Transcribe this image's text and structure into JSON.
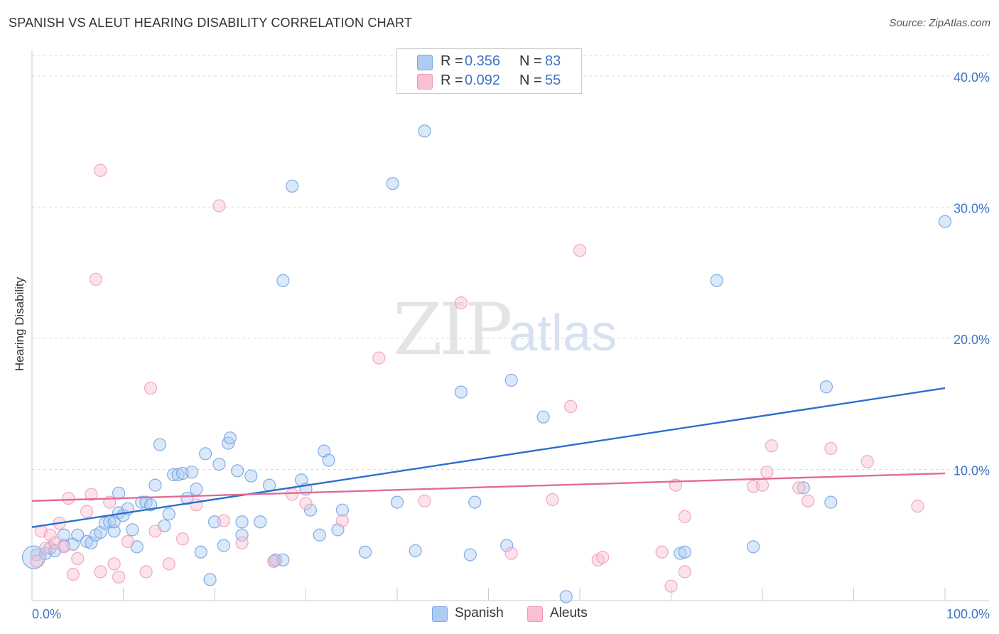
{
  "title": "SPANISH VS ALEUT HEARING DISABILITY CORRELATION CHART",
  "source": "Source: ZipAtlas.com",
  "watermark": {
    "zip": "ZIP",
    "atlas": "atlas"
  },
  "legend": {
    "rows": [
      {
        "r_label": "R =",
        "r_value": "0.356",
        "n_label": "N =",
        "n_value": "83",
        "color": "#aecbf2"
      },
      {
        "r_label": "R =",
        "r_value": "0.092",
        "n_label": "N =",
        "n_value": "55",
        "color": "#f8c0d2"
      }
    ]
  },
  "bottom_legend": {
    "spanish": "Spanish",
    "aleuts": "Aleuts"
  },
  "chart_data": {
    "type": "scatter",
    "title": "SPANISH VS ALEUT HEARING DISABILITY CORRELATION CHART",
    "xlabel": "",
    "ylabel": "Hearing Disability",
    "xlim": [
      0,
      100
    ],
    "ylim": [
      0,
      42
    ],
    "x_ticks": [
      "0.0%",
      "100.0%"
    ],
    "y_ticks": [
      {
        "value": 10,
        "label": "10.0%"
      },
      {
        "value": 20,
        "label": "20.0%"
      },
      {
        "value": 30,
        "label": "30.0%"
      },
      {
        "value": 40,
        "label": "40.0%"
      }
    ],
    "grid": true,
    "legend_position": "top-center",
    "series": [
      {
        "name": "Spanish",
        "color": "#6fa0e0",
        "fill": "#aecbf2",
        "line_color": "#2c6fcf",
        "trend": {
          "x": [
            0,
            100
          ],
          "y": [
            5.6,
            16.2
          ]
        },
        "points": [
          [
            0.5,
            3.5
          ],
          [
            1.5,
            3.6
          ],
          [
            2,
            4
          ],
          [
            2.5,
            3.8
          ],
          [
            3.5,
            4.2
          ],
          [
            3.5,
            5
          ],
          [
            4.5,
            4.3
          ],
          [
            5,
            5
          ],
          [
            6,
            4.5
          ],
          [
            6.5,
            4.4
          ],
          [
            7,
            5
          ],
          [
            7.5,
            5.2
          ],
          [
            8,
            5.9
          ],
          [
            8.5,
            6
          ],
          [
            9,
            5.3
          ],
          [
            9,
            6
          ],
          [
            9.5,
            6.7
          ],
          [
            9.5,
            8.2
          ],
          [
            10,
            6.5
          ],
          [
            10.5,
            7
          ],
          [
            11,
            5.4
          ],
          [
            11.5,
            4.1
          ],
          [
            12,
            7.5
          ],
          [
            12.5,
            7.5
          ],
          [
            13,
            7.3
          ],
          [
            13.5,
            8.8
          ],
          [
            14,
            11.9
          ],
          [
            14.5,
            5.7
          ],
          [
            15,
            6.6
          ],
          [
            15.5,
            9.6
          ],
          [
            16,
            9.6
          ],
          [
            16.5,
            9.7
          ],
          [
            17,
            7.8
          ],
          [
            17.5,
            9.8
          ],
          [
            18,
            8.5
          ],
          [
            18.5,
            3.7
          ],
          [
            19,
            11.2
          ],
          [
            19.5,
            1.6
          ],
          [
            20,
            6
          ],
          [
            20.5,
            10.4
          ],
          [
            21,
            4.2
          ],
          [
            21.5,
            12
          ],
          [
            21.7,
            12.4
          ],
          [
            22.5,
            9.9
          ],
          [
            23,
            5
          ],
          [
            23,
            6
          ],
          [
            24,
            9.5
          ],
          [
            25,
            6
          ],
          [
            26,
            8.8
          ],
          [
            26.5,
            3
          ],
          [
            26.7,
            3.1
          ],
          [
            27.5,
            24.4
          ],
          [
            27.5,
            3.1
          ],
          [
            28.5,
            31.6
          ],
          [
            29.5,
            9.2
          ],
          [
            30,
            8.5
          ],
          [
            30.5,
            6.9
          ],
          [
            31.5,
            5
          ],
          [
            32,
            11.4
          ],
          [
            32.5,
            10.7
          ],
          [
            33.5,
            5.4
          ],
          [
            34,
            6.9
          ],
          [
            36.5,
            3.7
          ],
          [
            39.5,
            31.8
          ],
          [
            40,
            7.5
          ],
          [
            42,
            3.8
          ],
          [
            43,
            35.8
          ],
          [
            47,
            15.9
          ],
          [
            48,
            3.5
          ],
          [
            48.5,
            7.5
          ],
          [
            52,
            4.2
          ],
          [
            52.5,
            16.8
          ],
          [
            56,
            14
          ],
          [
            58.5,
            0.3
          ],
          [
            71,
            3.6
          ],
          [
            71.5,
            3.7
          ],
          [
            75,
            24.4
          ],
          [
            79,
            4.1
          ],
          [
            84.5,
            8.6
          ],
          [
            87,
            16.3
          ],
          [
            87.5,
            7.5
          ],
          [
            100,
            28.9
          ],
          [
            0.2,
            3.3
          ]
        ]
      },
      {
        "name": "Aleuts",
        "color": "#ef9ab6",
        "fill": "#f8c0d2",
        "line_color": "#e36b96",
        "trend": {
          "x": [
            0,
            100
          ],
          "y": [
            7.6,
            9.7
          ]
        },
        "points": [
          [
            0.5,
            3
          ],
          [
            1,
            5.3
          ],
          [
            1.5,
            4
          ],
          [
            2,
            5
          ],
          [
            2.5,
            4.4
          ],
          [
            3,
            5.9
          ],
          [
            3.5,
            4.1
          ],
          [
            4,
            7.8
          ],
          [
            4.5,
            2
          ],
          [
            5,
            3.2
          ],
          [
            6,
            6.8
          ],
          [
            6.5,
            8.1
          ],
          [
            7,
            24.5
          ],
          [
            7.5,
            32.8
          ],
          [
            7.5,
            2.2
          ],
          [
            8.5,
            7.5
          ],
          [
            9,
            2.8
          ],
          [
            9.5,
            1.8
          ],
          [
            10.5,
            4.5
          ],
          [
            12.5,
            2.2
          ],
          [
            13,
            16.2
          ],
          [
            13.5,
            5.3
          ],
          [
            15,
            2.8
          ],
          [
            16.5,
            4.7
          ],
          [
            18,
            7.3
          ],
          [
            20.5,
            30.1
          ],
          [
            21,
            6.1
          ],
          [
            23,
            4.4
          ],
          [
            26.5,
            3
          ],
          [
            28.5,
            8.1
          ],
          [
            30,
            7.4
          ],
          [
            34,
            6.1
          ],
          [
            38,
            18.5
          ],
          [
            43,
            7.6
          ],
          [
            47,
            22.7
          ],
          [
            52.5,
            3.6
          ],
          [
            57,
            7.7
          ],
          [
            59,
            14.8
          ],
          [
            60,
            26.7
          ],
          [
            62,
            3.1
          ],
          [
            62.5,
            3.3
          ],
          [
            69,
            3.7
          ],
          [
            70,
            1.1
          ],
          [
            70.5,
            8.8
          ],
          [
            71.5,
            2.2
          ],
          [
            71.5,
            6.4
          ],
          [
            79,
            8.7
          ],
          [
            80,
            8.8
          ],
          [
            80.5,
            9.8
          ],
          [
            81,
            11.8
          ],
          [
            84,
            8.6
          ],
          [
            85,
            7.6
          ],
          [
            87.5,
            11.6
          ],
          [
            91.5,
            10.6
          ],
          [
            97,
            7.2
          ]
        ]
      }
    ]
  }
}
